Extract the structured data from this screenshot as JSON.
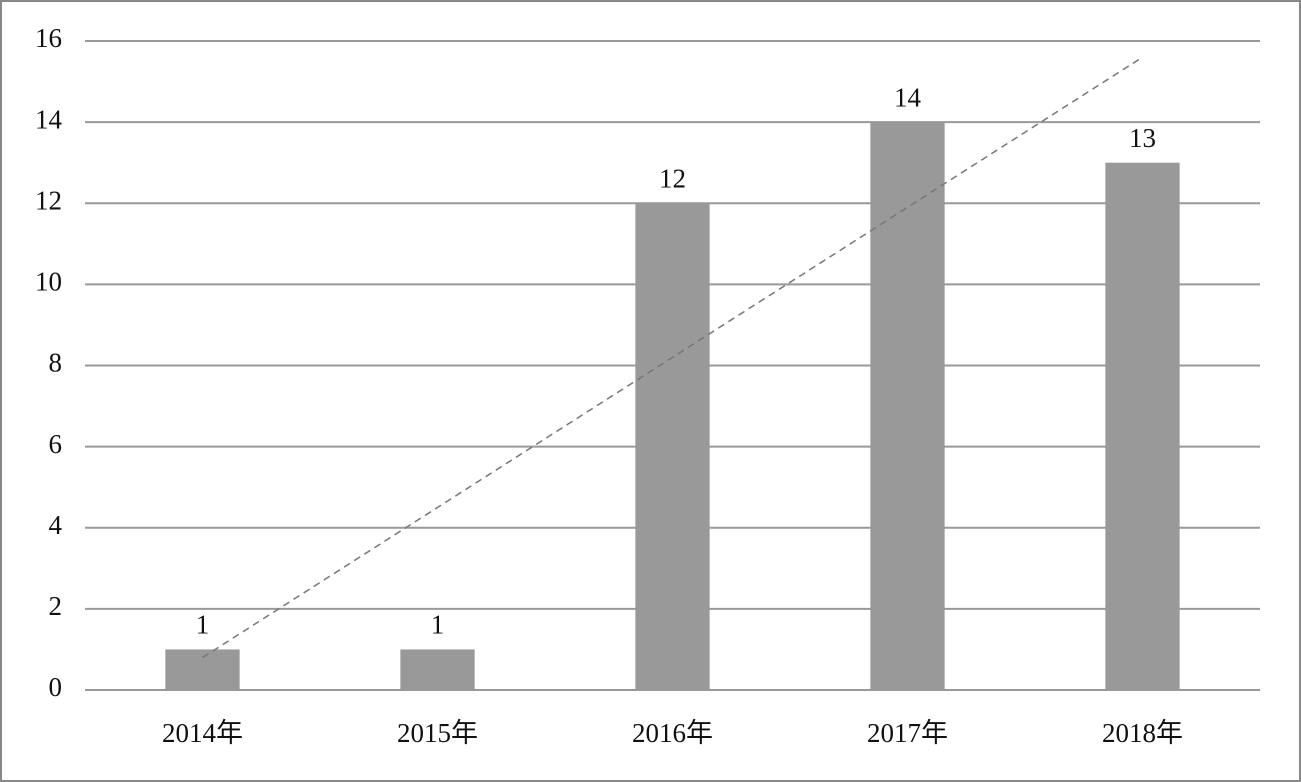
{
  "chart_data": {
    "type": "bar",
    "categories": [
      "2014年",
      "2015年",
      "2016年",
      "2017年",
      "2018年"
    ],
    "values": [
      1,
      1,
      12,
      14,
      13
    ],
    "color": "#999999",
    "ylim": [
      0,
      16
    ],
    "yticks": [
      0,
      2,
      4,
      6,
      8,
      10,
      12,
      14,
      16
    ],
    "grid": true,
    "trendline": "linear",
    "data_labels": true
  }
}
